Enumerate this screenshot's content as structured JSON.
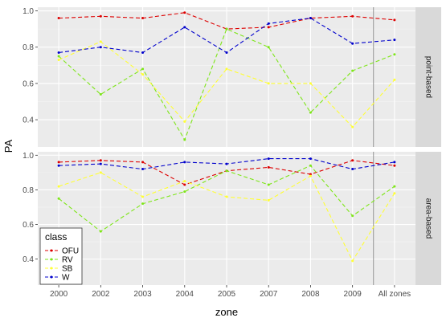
{
  "chart_data": {
    "type": "line",
    "xlabel": "zone",
    "ylabel": "PA",
    "categories": [
      "2000",
      "2002",
      "2003",
      "2004",
      "2005",
      "2007",
      "2008",
      "2009",
      "All zones"
    ],
    "ylim": [
      0.25,
      1.02
    ],
    "y_ticks": [
      "0.4",
      "0.6",
      "0.8",
      "1.0"
    ],
    "grid": true,
    "legend": {
      "title": "class",
      "position": "bottom-left",
      "entries": [
        {
          "name": "OFU",
          "color": "#dd0000"
        },
        {
          "name": "RV",
          "color": "#7ee619"
        },
        {
          "name": "SB",
          "color": "#ffff33"
        },
        {
          "name": "W",
          "color": "#0000cc"
        }
      ]
    },
    "panels": [
      {
        "label": "point-based",
        "series": [
          {
            "name": "OFU",
            "values": [
              0.96,
              0.97,
              0.96,
              0.99,
              0.9,
              0.91,
              0.96,
              0.97,
              0.95
            ]
          },
          {
            "name": "RV",
            "values": [
              0.75,
              0.54,
              0.68,
              0.29,
              0.9,
              0.8,
              0.44,
              0.67,
              0.76
            ]
          },
          {
            "name": "SB",
            "values": [
              0.73,
              0.83,
              0.65,
              0.39,
              0.68,
              0.6,
              0.6,
              0.36,
              0.62
            ]
          },
          {
            "name": "W",
            "values": [
              0.77,
              0.8,
              0.77,
              0.91,
              0.77,
              0.93,
              0.96,
              0.82,
              0.84
            ]
          }
        ]
      },
      {
        "label": "area-based",
        "series": [
          {
            "name": "OFU",
            "values": [
              0.96,
              0.97,
              0.96,
              0.83,
              0.91,
              0.93,
              0.89,
              0.97,
              0.94
            ]
          },
          {
            "name": "RV",
            "values": [
              0.75,
              0.56,
              0.72,
              0.79,
              0.91,
              0.83,
              0.94,
              0.65,
              0.82
            ]
          },
          {
            "name": "SB",
            "values": [
              0.82,
              0.9,
              0.76,
              0.85,
              0.76,
              0.74,
              0.88,
              0.39,
              0.78
            ]
          },
          {
            "name": "W",
            "values": [
              0.94,
              0.95,
              0.92,
              0.96,
              0.95,
              0.98,
              0.98,
              0.92,
              0.96
            ]
          }
        ]
      }
    ]
  }
}
